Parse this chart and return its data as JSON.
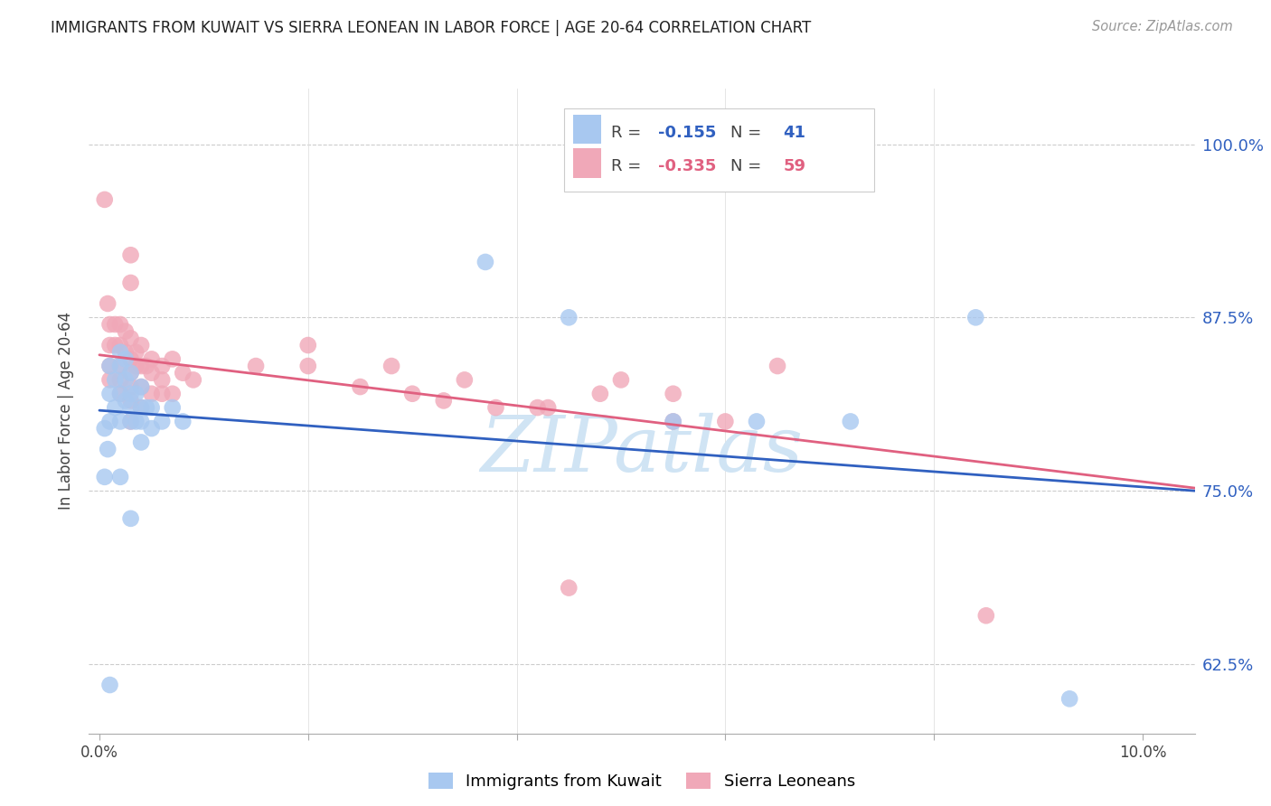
{
  "title": "IMMIGRANTS FROM KUWAIT VS SIERRA LEONEAN IN LABOR FORCE | AGE 20-64 CORRELATION CHART",
  "source": "Source: ZipAtlas.com",
  "ylabel": "In Labor Force | Age 20-64",
  "y_ticks": [
    0.625,
    0.75,
    0.875,
    1.0
  ],
  "y_tick_labels": [
    "62.5%",
    "75.0%",
    "87.5%",
    "100.0%"
  ],
  "xlim": [
    -0.001,
    0.105
  ],
  "ylim": [
    0.575,
    1.04
  ],
  "blue_label": "Immigrants from Kuwait",
  "pink_label": "Sierra Leoneans",
  "blue_R": -0.155,
  "blue_N": 41,
  "pink_R": -0.335,
  "pink_N": 59,
  "blue_color": "#a8c8f0",
  "pink_color": "#f0a8b8",
  "blue_line_color": "#3060c0",
  "pink_line_color": "#e06080",
  "watermark": "ZIPatlas",
  "watermark_color": "#d0e4f4",
  "blue_x": [
    0.0005,
    0.0005,
    0.0008,
    0.001,
    0.001,
    0.001,
    0.0015,
    0.0015,
    0.002,
    0.002,
    0.002,
    0.002,
    0.0025,
    0.0025,
    0.0025,
    0.003,
    0.003,
    0.003,
    0.003,
    0.0035,
    0.0035,
    0.004,
    0.004,
    0.004,
    0.004,
    0.0045,
    0.005,
    0.005,
    0.006,
    0.007,
    0.008,
    0.037,
    0.045,
    0.055,
    0.063,
    0.072,
    0.084,
    0.093,
    0.002,
    0.003,
    0.001
  ],
  "blue_y": [
    0.795,
    0.76,
    0.78,
    0.84,
    0.82,
    0.8,
    0.83,
    0.81,
    0.85,
    0.84,
    0.82,
    0.8,
    0.845,
    0.83,
    0.815,
    0.835,
    0.82,
    0.81,
    0.8,
    0.82,
    0.8,
    0.825,
    0.81,
    0.8,
    0.785,
    0.81,
    0.81,
    0.795,
    0.8,
    0.81,
    0.8,
    0.915,
    0.875,
    0.8,
    0.8,
    0.8,
    0.875,
    0.6,
    0.76,
    0.73,
    0.61
  ],
  "pink_x": [
    0.0005,
    0.0008,
    0.001,
    0.001,
    0.001,
    0.001,
    0.0015,
    0.0015,
    0.002,
    0.002,
    0.002,
    0.002,
    0.002,
    0.0025,
    0.0025,
    0.003,
    0.003,
    0.003,
    0.003,
    0.003,
    0.0035,
    0.0035,
    0.004,
    0.004,
    0.004,
    0.004,
    0.0045,
    0.005,
    0.005,
    0.005,
    0.006,
    0.006,
    0.006,
    0.007,
    0.007,
    0.008,
    0.009,
    0.015,
    0.02,
    0.025,
    0.03,
    0.033,
    0.038,
    0.042,
    0.048,
    0.05,
    0.055,
    0.06,
    0.065,
    0.02,
    0.028,
    0.035,
    0.045,
    0.055,
    0.003,
    0.003,
    0.085,
    0.043,
    0.003
  ],
  "pink_y": [
    0.96,
    0.885,
    0.87,
    0.855,
    0.84,
    0.83,
    0.87,
    0.855,
    0.87,
    0.855,
    0.84,
    0.83,
    0.82,
    0.865,
    0.85,
    0.86,
    0.845,
    0.835,
    0.825,
    0.815,
    0.85,
    0.84,
    0.855,
    0.84,
    0.825,
    0.81,
    0.84,
    0.845,
    0.835,
    0.82,
    0.84,
    0.83,
    0.82,
    0.845,
    0.82,
    0.835,
    0.83,
    0.84,
    0.84,
    0.825,
    0.82,
    0.815,
    0.81,
    0.81,
    0.82,
    0.83,
    0.82,
    0.8,
    0.84,
    0.855,
    0.84,
    0.83,
    0.68,
    0.8,
    0.92,
    0.9,
    0.66,
    0.81,
    0.8
  ],
  "blue_trend_x": [
    0.0,
    0.105
  ],
  "blue_trend_y": [
    0.808,
    0.75
  ],
  "pink_trend_x": [
    0.0,
    0.105
  ],
  "pink_trend_y": [
    0.848,
    0.752
  ]
}
